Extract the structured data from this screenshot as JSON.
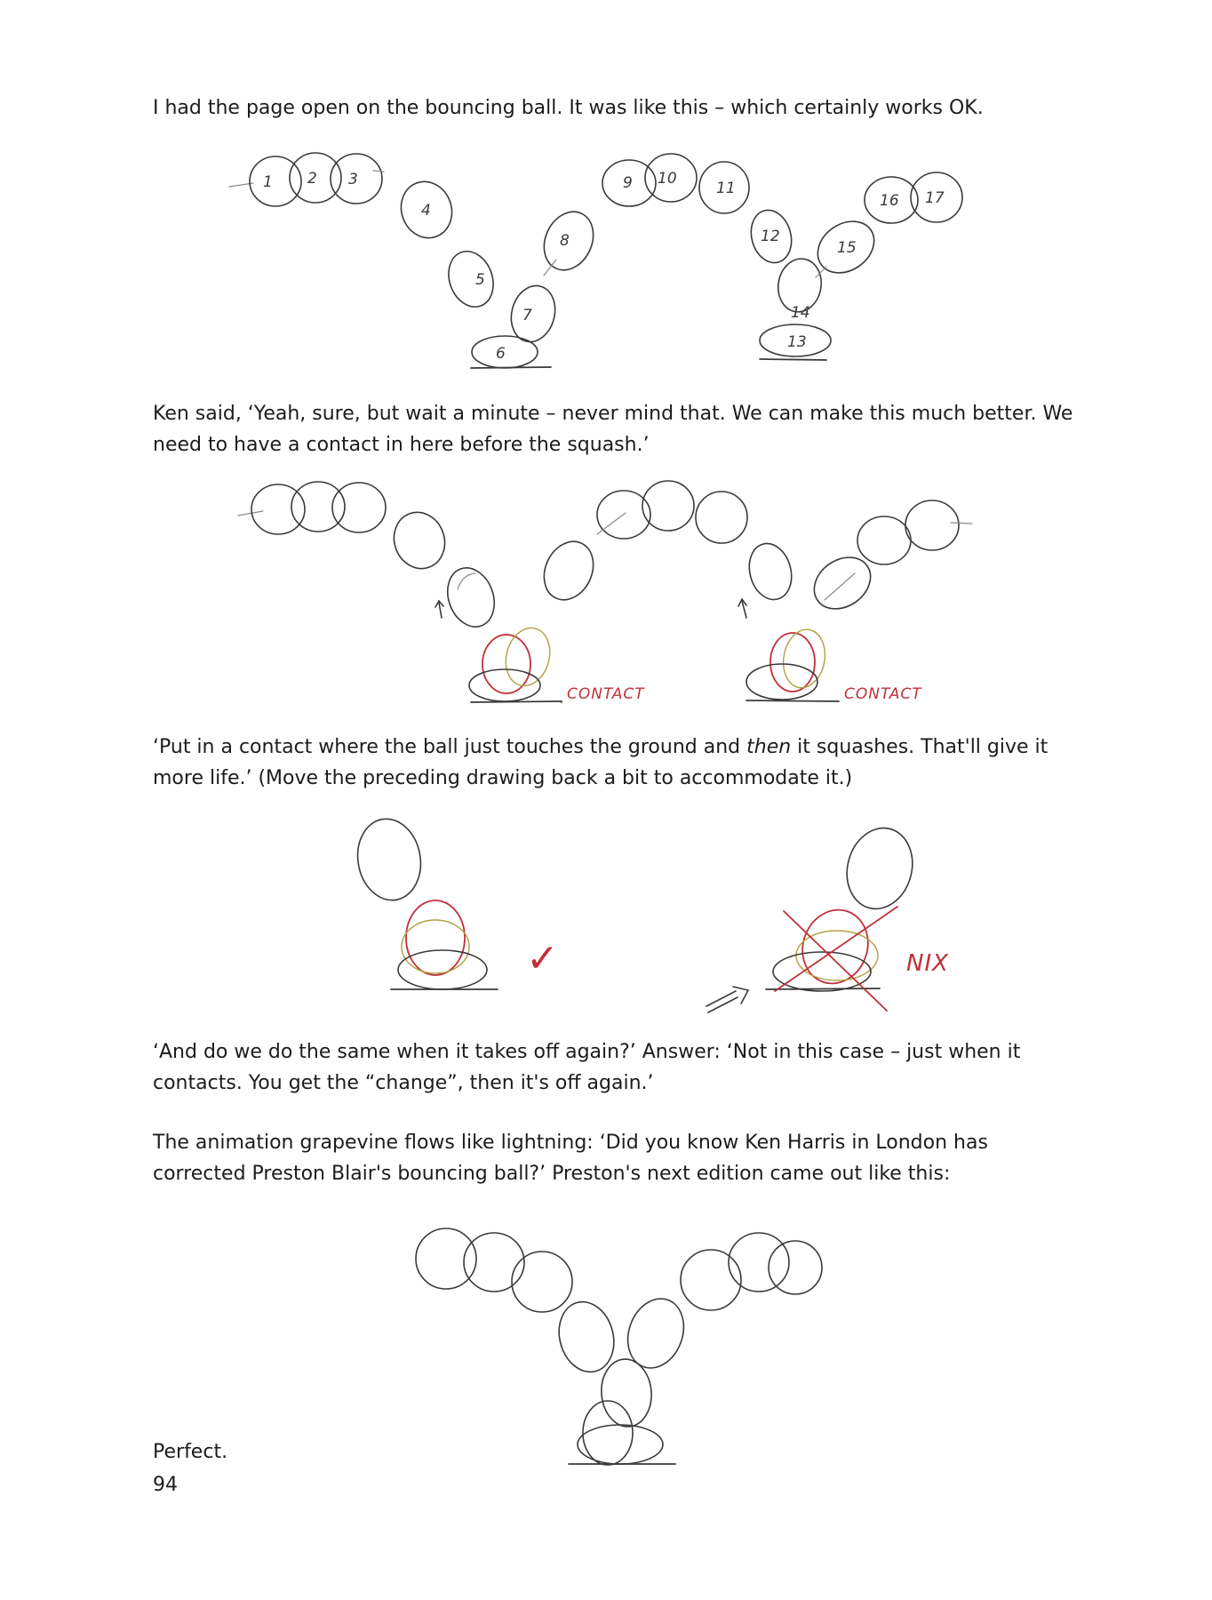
{
  "paragraphs": {
    "p1": "I had the page open on the bouncing ball. It was like this – which certainly works OK.",
    "p2": "Ken said, ‘Yeah, sure, but wait a minute – never mind that. We can make this much better. We need to have a contact in here before the squash.’",
    "p3_before": "‘Put in a contact where the ball just touches the ground and ",
    "p3_italic": "then",
    "p3_after": " it squashes. That'll give it more life.’ (Move the preceding drawing back a bit to accommodate it.)",
    "p4": "‘And do we do the same when it takes off again?’ Answer: ‘Not in this case – just when it contacts. You get the “change”, then it's off again.’",
    "p5": "The animation grapevine flows like lightning: ‘Did you know Ken Harris in London has corrected Preston Blair's bouncing ball?’ Preston's next edition came out like this:",
    "p6": "Perfect."
  },
  "figure1": {
    "frame_numbers": [
      "1",
      "2",
      "3",
      "4",
      "5",
      "6",
      "7",
      "8",
      "9",
      "10",
      "11",
      "12",
      "13",
      "14",
      "15",
      "16",
      "17"
    ]
  },
  "figure2": {
    "label_left": "CONTACT",
    "label_right": "CONTACT"
  },
  "figure3": {
    "check_mark": "✓",
    "label_nix": "NIX"
  },
  "page_number": "94",
  "colors": {
    "pencil": "#3a3a3a",
    "red_pencil": "#c0303a"
  }
}
